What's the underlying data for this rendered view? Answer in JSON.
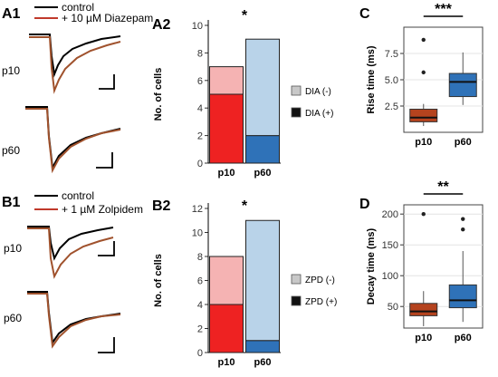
{
  "panels": {
    "A1": {
      "letter": "A1",
      "legend": [
        {
          "label": "control",
          "color": "#000000"
        },
        {
          "label": "+ 10 µM Diazepam",
          "color": "#c0392b"
        }
      ],
      "row_labels": [
        "p10",
        "p60"
      ]
    },
    "B1": {
      "letter": "B1",
      "legend": [
        {
          "label": "control",
          "color": "#000000"
        },
        {
          "label": "+ 1 µM Zolpidem",
          "color": "#c0392b"
        }
      ],
      "row_labels": [
        "p10",
        "p60"
      ]
    }
  },
  "chart_data": [
    {
      "id": "A2",
      "letter": "A2",
      "type": "bar",
      "stacked": true,
      "categories": [
        "p10",
        "p60"
      ],
      "series": [
        {
          "name": "DIA (+)",
          "values": [
            5,
            2
          ],
          "colors": [
            "#ee2222",
            "#2f72b8"
          ]
        },
        {
          "name": "DIA (-)",
          "values": [
            2,
            7
          ],
          "colors": [
            "#f5b3b3",
            "#b9d3e9"
          ]
        }
      ],
      "ylabel": "No. of cells",
      "ylim": [
        0,
        10
      ],
      "yticks": [
        0,
        2,
        4,
        6,
        8,
        10
      ],
      "significance": "*",
      "legend": [
        {
          "label": "DIA (-)",
          "color": "#c8c8c8"
        },
        {
          "label": "DIA (+)",
          "color": "#111111"
        }
      ]
    },
    {
      "id": "B2",
      "letter": "B2",
      "type": "bar",
      "stacked": true,
      "categories": [
        "p10",
        "p60"
      ],
      "series": [
        {
          "name": "ZPD (+)",
          "values": [
            4,
            1
          ],
          "colors": [
            "#ee2222",
            "#2f72b8"
          ]
        },
        {
          "name": "ZPD (-)",
          "values": [
            4,
            10
          ],
          "colors": [
            "#f5b3b3",
            "#b9d3e9"
          ]
        }
      ],
      "ylabel": "No. of cells",
      "ylim": [
        0,
        12
      ],
      "yticks": [
        0,
        2,
        4,
        6,
        8,
        10,
        12
      ],
      "significance": "*",
      "legend": [
        {
          "label": "ZPD (-)",
          "color": "#c8c8c8"
        },
        {
          "label": "ZPD (+)",
          "color": "#111111"
        }
      ]
    },
    {
      "id": "C",
      "letter": "C",
      "type": "box",
      "categories": [
        "p10",
        "p60"
      ],
      "ylabel": "Rise time (ms)",
      "ylim": [
        0,
        10
      ],
      "yticks": [
        2.5,
        5.0,
        7.5
      ],
      "ytick_labels": [
        "2.5",
        "5.0",
        "7.5"
      ],
      "significance": "***",
      "boxes": [
        {
          "category": "p10",
          "whisker_low": 0.6,
          "q1": 1.0,
          "median": 1.4,
          "q3": 2.2,
          "whisker_high": 2.7,
          "outliers": [
            5.7,
            8.8
          ],
          "color": "#b5431e"
        },
        {
          "category": "p60",
          "whisker_low": 2.6,
          "q1": 3.4,
          "median": 4.8,
          "q3": 5.6,
          "whisker_high": 7.6,
          "outliers": [],
          "color": "#2f72b8"
        }
      ]
    },
    {
      "id": "D",
      "letter": "D",
      "type": "box",
      "categories": [
        "p10",
        "p60"
      ],
      "ylabel": "Decay time (ms)",
      "ylim": [
        15,
        215
      ],
      "yticks": [
        50,
        100,
        150,
        200
      ],
      "ytick_labels": [
        "50",
        "100",
        "150",
        "200"
      ],
      "significance": "**",
      "boxes": [
        {
          "category": "p10",
          "whisker_low": 18,
          "q1": 35,
          "median": 42,
          "q3": 55,
          "whisker_high": 75,
          "outliers": [
            200
          ],
          "color": "#b5431e"
        },
        {
          "category": "p60",
          "whisker_low": 25,
          "q1": 48,
          "median": 60,
          "q3": 85,
          "whisker_high": 140,
          "outliers": [
            175,
            192
          ],
          "color": "#2f72b8"
        }
      ]
    }
  ]
}
